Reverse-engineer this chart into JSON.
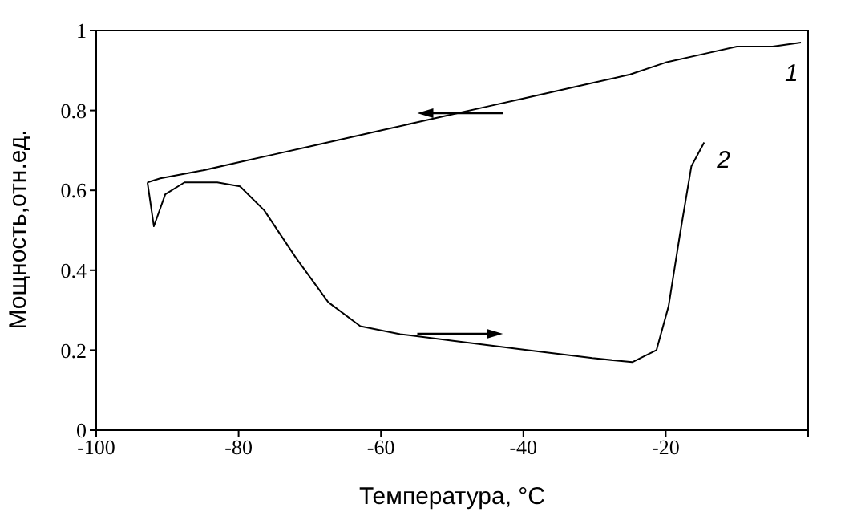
{
  "chart_data": {
    "type": "line",
    "xlabel": "Температура, °C",
    "ylabel": "Мощность,отн.ед.",
    "xlim": [
      -100,
      0
    ],
    "xticks": [
      -100,
      -80,
      -60,
      -40,
      -20,
      {
        "value": 0,
        "label": null
      }
    ],
    "ylim": [
      0,
      1
    ],
    "yticks": [
      0,
      0.2,
      0.4,
      0.6,
      0.8,
      1
    ],
    "grid": false,
    "legend": false,
    "marker": "none",
    "line_style": "solid",
    "series": [
      {
        "name": "1",
        "color": "#000000",
        "x": [
          -92.8,
          -91,
          -88,
          -85,
          -80,
          -75,
          -70,
          -65,
          -60,
          -55,
          -50,
          -45,
          -40,
          -35,
          -30,
          -25,
          -20,
          -15,
          -10,
          -5,
          -1
        ],
        "values": [
          0.62,
          0.63,
          0.64,
          0.65,
          0.67,
          0.69,
          0.71,
          0.73,
          0.75,
          0.77,
          0.79,
          0.81,
          0.83,
          0.85,
          0.87,
          0.89,
          0.92,
          0.94,
          0.96,
          0.96,
          0.97
        ]
      },
      {
        "name": "2",
        "color": "#000000",
        "x": [
          -92.8,
          -91.9,
          -90.3,
          -87.6,
          -83,
          -79.8,
          -76.4,
          -71.9,
          -67.4,
          -62.9,
          -57.3,
          -48.3,
          -39.3,
          -30.3,
          -24.7,
          -21.3,
          -19.6,
          -18,
          -16.4,
          -14.6
        ],
        "values": [
          0.62,
          0.51,
          0.59,
          0.62,
          0.62,
          0.61,
          0.55,
          0.43,
          0.32,
          0.26,
          0.24,
          0.22,
          0.2,
          0.18,
          0.17,
          0.2,
          0.31,
          0.49,
          0.66,
          0.72
        ]
      }
    ]
  }
}
